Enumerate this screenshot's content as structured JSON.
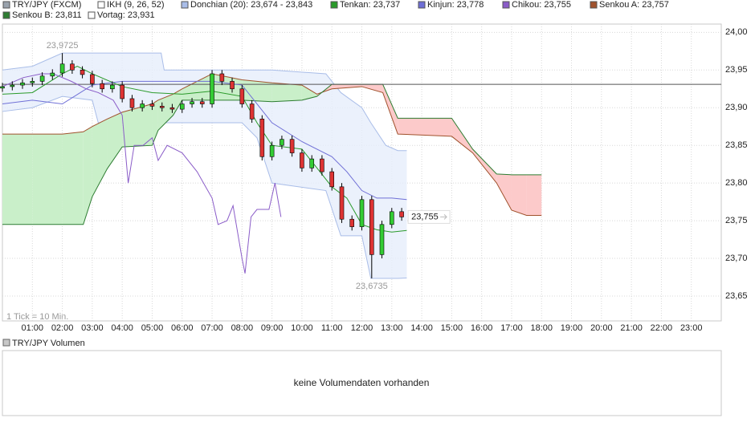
{
  "chart_data": {
    "type": "candlestick",
    "xlim": [
      0,
      24
    ],
    "ylim": [
      23.617,
      24.011
    ],
    "grid": true,
    "xticks": [
      {
        "value": 1,
        "label": "01:00"
      },
      {
        "value": 2,
        "label": "02:00"
      },
      {
        "value": 3,
        "label": "03:00"
      },
      {
        "value": 4,
        "label": "04:00"
      },
      {
        "value": 5,
        "label": "05:00"
      },
      {
        "value": 6,
        "label": "06:00"
      },
      {
        "value": 7,
        "label": "07:00"
      },
      {
        "value": 8,
        "label": "08:00"
      },
      {
        "value": 9,
        "label": "09:00"
      },
      {
        "value": 10,
        "label": "10:00"
      },
      {
        "value": 11,
        "label": "11:00"
      },
      {
        "value": 12,
        "label": "12:00"
      },
      {
        "value": 13,
        "label": "13:00"
      },
      {
        "value": 14,
        "label": "14:00"
      },
      {
        "value": 15,
        "label": "15:00"
      },
      {
        "value": 16,
        "label": "16:00"
      },
      {
        "value": 17,
        "label": "17:00"
      },
      {
        "value": 18,
        "label": "18:00"
      },
      {
        "value": 19,
        "label": "19:00"
      },
      {
        "value": 20,
        "label": "20:00"
      },
      {
        "value": 21,
        "label": "21:00"
      },
      {
        "value": 22,
        "label": "22:00"
      },
      {
        "value": 23,
        "label": "23:00"
      }
    ],
    "yticks": [
      {
        "value": 23.65,
        "label": "23,65"
      },
      {
        "value": 23.7,
        "label": "23,70"
      },
      {
        "value": 23.75,
        "label": "23,75"
      },
      {
        "value": 23.8,
        "label": "23,80"
      },
      {
        "value": 23.85,
        "label": "23,85"
      },
      {
        "value": 23.9,
        "label": "23,90"
      },
      {
        "value": 23.95,
        "label": "23,95"
      },
      {
        "value": 24.0,
        "label": "24,00"
      }
    ],
    "candles": {
      "name": "TRY/JPY (FXCM)",
      "color": "#9aa3ad",
      "up_color": "#33cc33",
      "down_color": "#dd3333",
      "x": [
        0,
        0.33,
        0.67,
        1,
        1.33,
        1.67,
        2,
        2.33,
        2.67,
        3,
        3.33,
        3.67,
        4,
        4.33,
        4.67,
        5,
        5.33,
        5.67,
        6,
        6.33,
        6.67,
        7,
        7.33,
        7.67,
        8,
        8.33,
        8.67,
        9,
        9.33,
        9.67,
        10,
        10.33,
        10.67,
        11,
        11.33,
        11.67,
        12,
        12.33,
        12.67,
        13,
        13.33
      ],
      "open": [
        23.926,
        23.928,
        23.93,
        23.933,
        23.935,
        23.942,
        23.946,
        23.958,
        23.95,
        23.944,
        23.932,
        23.925,
        23.93,
        23.912,
        23.9,
        23.905,
        23.902,
        23.9,
        23.898,
        23.905,
        23.908,
        23.905,
        23.945,
        23.935,
        23.925,
        23.905,
        23.885,
        23.835,
        23.85,
        23.858,
        23.84,
        23.82,
        23.832,
        23.815,
        23.795,
        23.752,
        23.742,
        23.778,
        23.705,
        23.745,
        23.762
      ],
      "high": [
        23.933,
        23.935,
        23.938,
        23.94,
        23.947,
        23.951,
        23.9725,
        23.963,
        23.955,
        23.949,
        23.937,
        23.935,
        23.935,
        23.917,
        23.91,
        23.91,
        23.907,
        23.905,
        23.91,
        23.913,
        23.913,
        23.95,
        23.95,
        23.94,
        23.93,
        23.91,
        23.89,
        23.855,
        23.863,
        23.863,
        23.845,
        23.837,
        23.837,
        23.82,
        23.8,
        23.757,
        23.783,
        23.783,
        23.75,
        23.767,
        23.767
      ],
      "low": [
        23.921,
        23.923,
        23.925,
        23.928,
        23.93,
        23.937,
        23.941,
        23.945,
        23.939,
        23.927,
        23.92,
        23.92,
        23.907,
        23.895,
        23.895,
        23.897,
        23.895,
        23.893,
        23.893,
        23.9,
        23.9,
        23.9,
        23.93,
        23.92,
        23.9,
        23.88,
        23.83,
        23.83,
        23.845,
        23.835,
        23.815,
        23.815,
        23.81,
        23.79,
        23.747,
        23.737,
        23.737,
        23.6735,
        23.7,
        23.74,
        23.75
      ],
      "close": [
        23.928,
        23.93,
        23.933,
        23.935,
        23.942,
        23.946,
        23.958,
        23.95,
        23.944,
        23.932,
        23.925,
        23.93,
        23.912,
        23.9,
        23.905,
        23.902,
        23.9,
        23.898,
        23.905,
        23.908,
        23.905,
        23.945,
        23.935,
        23.925,
        23.905,
        23.885,
        23.835,
        23.85,
        23.858,
        23.84,
        23.82,
        23.832,
        23.815,
        23.795,
        23.752,
        23.742,
        23.778,
        23.705,
        23.745,
        23.762,
        23.755
      ]
    },
    "indicator": {
      "name": "IKH (9, 26, 52)",
      "color": "#ffffff"
    },
    "donchian": {
      "name": "Donchian (20): 23,674 - 23,843",
      "color": "#a9bde8",
      "fill": "#e6edfb",
      "x": [
        0,
        1,
        2,
        3,
        3.2,
        5.3,
        5.4,
        8,
        8.5,
        9,
        10.8,
        11.3,
        12,
        12.3,
        12.8,
        13.2,
        13.5
      ],
      "upper": [
        23.95,
        23.955,
        23.9725,
        23.9725,
        23.9725,
        23.9725,
        23.95,
        23.95,
        23.95,
        23.95,
        23.945,
        23.92,
        23.9,
        23.88,
        23.85,
        23.843,
        23.843
      ],
      "lower": [
        23.895,
        23.9,
        23.915,
        23.91,
        23.88,
        23.88,
        23.88,
        23.88,
        23.86,
        23.8,
        23.79,
        23.73,
        23.73,
        23.6735,
        23.6735,
        23.6735,
        23.674
      ]
    },
    "series": [
      {
        "name": "Tenkan: 23,737",
        "color": "#2a9a2a",
        "x": [
          0,
          1,
          2,
          2.5,
          3,
          4,
          5,
          6,
          7,
          8,
          8.5,
          9,
          10,
          10.5,
          11,
          11.5,
          12,
          12.5,
          13,
          13.5
        ],
        "values": [
          23.918,
          23.92,
          23.945,
          23.955,
          23.945,
          23.928,
          23.92,
          23.918,
          23.922,
          23.915,
          23.88,
          23.85,
          23.845,
          23.82,
          23.795,
          23.78,
          23.745,
          23.738,
          23.735,
          23.737
        ]
      },
      {
        "name": "Kinjun: 23,778",
        "color": "#6f6fd6",
        "x": [
          0,
          1,
          2,
          3,
          4,
          5,
          6,
          7,
          8,
          9,
          10,
          11,
          11.5,
          12,
          12.5,
          13,
          13.5
        ],
        "values": [
          23.905,
          23.91,
          23.905,
          23.93,
          23.935,
          23.935,
          23.935,
          23.935,
          23.93,
          23.88,
          23.855,
          23.835,
          23.815,
          23.79,
          23.78,
          23.78,
          23.778
        ]
      },
      {
        "name": "Chikou: 23,755",
        "color": "#8a5cc8",
        "x": [
          0,
          0.7,
          1.3,
          1.7,
          2.3,
          2.8,
          3.2,
          3.7,
          4,
          4.2,
          4.4,
          4.7,
          5,
          5.2,
          5.5,
          6,
          6.5,
          7,
          7.2,
          7.5,
          7.7,
          8,
          8.1,
          8.3,
          8.5,
          8.9,
          9.1,
          9.3
        ],
        "values": [
          23.928,
          23.94,
          23.945,
          23.945,
          23.935,
          23.925,
          23.92,
          23.91,
          23.89,
          23.8,
          23.85,
          23.85,
          23.86,
          23.83,
          23.85,
          23.84,
          23.815,
          23.78,
          23.745,
          23.75,
          23.77,
          23.7,
          23.68,
          23.755,
          23.765,
          23.765,
          23.8,
          23.755
        ]
      }
    ],
    "senkou": {
      "x": [
        0,
        1,
        2,
        2.7,
        3,
        3.5,
        4,
        5,
        5.2,
        5.7,
        6,
        7,
        8,
        9,
        10,
        10.5,
        11,
        12,
        12.7,
        13.2,
        15,
        15.7,
        16.5,
        17,
        17.5,
        18
      ],
      "fill_up": "#c9efc9",
      "fill_down": "#fccaca",
      "a": {
        "name": "Senkou A: 23,757",
        "color": "#a0522d",
        "values": [
          23.865,
          23.865,
          23.865,
          23.868,
          23.875,
          23.885,
          23.894,
          23.905,
          23.91,
          23.918,
          23.925,
          23.945,
          23.937,
          23.933,
          23.93,
          23.918,
          23.925,
          23.928,
          23.92,
          23.865,
          23.862,
          23.84,
          23.8,
          23.764,
          23.757,
          23.757
        ]
      },
      "b": {
        "name": "Senkou B: 23,811",
        "color": "#2e7d32",
        "values": [
          23.745,
          23.745,
          23.745,
          23.745,
          23.782,
          23.819,
          23.848,
          23.85,
          23.87,
          23.89,
          23.91,
          23.91,
          23.91,
          23.908,
          23.91,
          23.915,
          23.931,
          23.931,
          23.931,
          23.886,
          23.886,
          23.845,
          23.812,
          23.811,
          23.811,
          23.811
        ]
      }
    },
    "vortag": {
      "name": "Vortag: 23,931",
      "value": 23.931,
      "color": "#ffffff"
    },
    "annotations": [
      {
        "x": 2,
        "value": 23.9725,
        "label": "23,9725"
      },
      {
        "x": 12.33,
        "value": 23.6735,
        "label": "23,6735"
      }
    ],
    "last_price": {
      "value": 23.755,
      "label": "23,755"
    },
    "tick_note": "1 Tick = 10 Min.",
    "volume": {
      "name": "TRY/JPY Volumen",
      "message": "keine Volumendaten vorhanden"
    }
  }
}
